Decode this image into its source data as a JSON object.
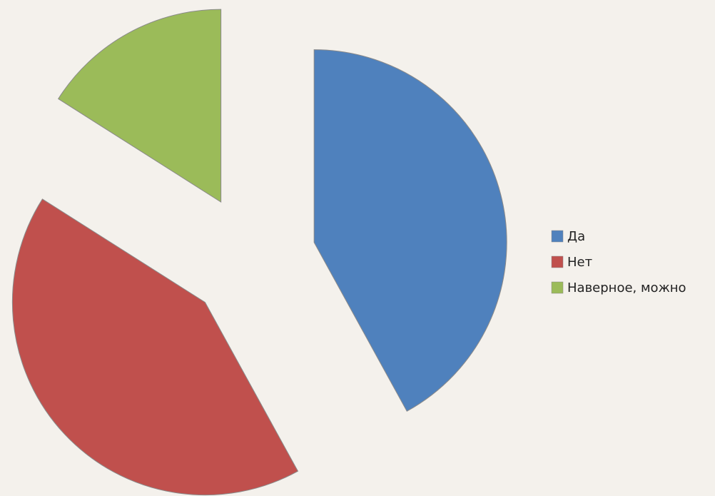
{
  "chart_data": {
    "type": "pie",
    "categories": [
      "Да",
      "Нет",
      "Наверное, можно"
    ],
    "values": [
      42,
      42,
      16
    ],
    "colors": [
      "#4f81bd",
      "#c0504d",
      "#9bbb59"
    ],
    "legend": "right"
  }
}
